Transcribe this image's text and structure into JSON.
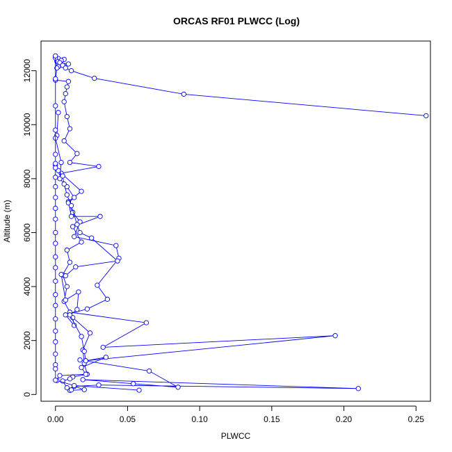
{
  "chart_data": {
    "type": "line",
    "title": "ORCAS RF01 PLWCC (Log)",
    "xlabel": "PLWCC",
    "ylabel": "Altitude (m)",
    "xlim": [
      -0.01,
      0.26
    ],
    "ylim": [
      -250,
      13100
    ],
    "x_ticks": [
      0.0,
      0.05,
      0.1,
      0.15,
      0.2,
      0.25
    ],
    "x_tick_labels": [
      "0.00",
      "0.05",
      "0.10",
      "0.15",
      "0.20",
      "0.25"
    ],
    "y_ticks": [
      0,
      2000,
      4000,
      6000,
      8000,
      10000,
      12000
    ],
    "y_tick_labels": [
      "0",
      "2000",
      "4000",
      "6000",
      "8000",
      "10000",
      "12000"
    ],
    "grid": false,
    "marker": "open-circle",
    "color": "#0000ff",
    "series": [
      {
        "points": [
          {
            "x": 0.0,
            "y": 12500
          },
          {
            "x": 0.002,
            "y": 12450
          },
          {
            "x": 0.006,
            "y": 12420
          },
          {
            "x": 0.004,
            "y": 12380
          },
          {
            "x": 0.001,
            "y": 12350
          },
          {
            "x": 0.003,
            "y": 12300
          },
          {
            "x": 0.009,
            "y": 12250
          },
          {
            "x": 0.005,
            "y": 12200
          },
          {
            "x": 0.002,
            "y": 12150
          },
          {
            "x": 0.007,
            "y": 12100
          },
          {
            "x": 0.011,
            "y": 12000
          },
          {
            "x": 0.027,
            "y": 11720
          },
          {
            "x": 0.089,
            "y": 11130
          },
          {
            "x": 0.257,
            "y": 10330
          }
        ]
      },
      {
        "points": [
          {
            "x": 0.0,
            "y": 12470
          },
          {
            "x": 0.001,
            "y": 12100
          },
          {
            "x": 0.0,
            "y": 11650
          },
          {
            "x": 0.009,
            "y": 11600
          },
          {
            "x": 0.008,
            "y": 11400
          },
          {
            "x": 0.007,
            "y": 11150
          },
          {
            "x": 0.006,
            "y": 10850
          },
          {
            "x": 0.008,
            "y": 10300
          },
          {
            "x": 0.01,
            "y": 9850
          },
          {
            "x": 0.006,
            "y": 9400
          },
          {
            "x": 0.015,
            "y": 8930
          },
          {
            "x": 0.01,
            "y": 8600
          },
          {
            "x": 0.03,
            "y": 8450
          },
          {
            "x": 0.004,
            "y": 8200
          },
          {
            "x": 0.018,
            "y": 7530
          },
          {
            "x": 0.009,
            "y": 7150
          },
          {
            "x": 0.011,
            "y": 6600
          },
          {
            "x": 0.031,
            "y": 6600
          },
          {
            "x": 0.012,
            "y": 6220
          },
          {
            "x": 0.018,
            "y": 5650
          },
          {
            "x": 0.008,
            "y": 5350
          },
          {
            "x": 0.01,
            "y": 4900
          },
          {
            "x": 0.005,
            "y": 4430
          },
          {
            "x": 0.008,
            "y": 4000
          },
          {
            "x": 0.006,
            "y": 3450
          },
          {
            "x": 0.01,
            "y": 3050
          },
          {
            "x": 0.063,
            "y": 2660
          },
          {
            "x": 0.033,
            "y": 1750
          },
          {
            "x": 0.194,
            "y": 2180
          },
          {
            "x": 0.021,
            "y": 1250
          },
          {
            "x": 0.017,
            "y": 1280
          },
          {
            "x": 0.065,
            "y": 870
          },
          {
            "x": 0.085,
            "y": 270
          },
          {
            "x": 0.054,
            "y": 400
          },
          {
            "x": 0.019,
            "y": 550
          },
          {
            "x": 0.21,
            "y": 220
          },
          {
            "x": 0.03,
            "y": 350
          },
          {
            "x": 0.013,
            "y": 300
          },
          {
            "x": 0.02,
            "y": 180
          },
          {
            "x": 0.01,
            "y": 150
          }
        ]
      },
      {
        "points": [
          {
            "x": 0.002,
            "y": 10450
          },
          {
            "x": 0.001,
            "y": 9600
          },
          {
            "x": 0.0,
            "y": 9500
          },
          {
            "x": 0.004,
            "y": 8600
          },
          {
            "x": 0.003,
            "y": 8000
          },
          {
            "x": 0.008,
            "y": 7700
          },
          {
            "x": 0.013,
            "y": 7300
          },
          {
            "x": 0.009,
            "y": 7100
          },
          {
            "x": 0.012,
            "y": 6750
          },
          {
            "x": 0.017,
            "y": 6400
          },
          {
            "x": 0.013,
            "y": 5850
          },
          {
            "x": 0.042,
            "y": 5520
          },
          {
            "x": 0.044,
            "y": 5050
          },
          {
            "x": 0.029,
            "y": 4050
          },
          {
            "x": 0.036,
            "y": 3530
          },
          {
            "x": 0.022,
            "y": 3170
          },
          {
            "x": 0.007,
            "y": 2950
          },
          {
            "x": 0.013,
            "y": 2560
          },
          {
            "x": 0.012,
            "y": 2850
          },
          {
            "x": 0.024,
            "y": 2280
          },
          {
            "x": 0.019,
            "y": 1650
          },
          {
            "x": 0.02,
            "y": 1150
          },
          {
            "x": 0.022,
            "y": 750
          },
          {
            "x": 0.012,
            "y": 650
          },
          {
            "x": 0.01,
            "y": 580
          },
          {
            "x": 0.005,
            "y": 500
          },
          {
            "x": 0.008,
            "y": 250
          },
          {
            "x": 0.011,
            "y": 170
          }
        ]
      },
      {
        "points": [
          {
            "x": 0.0,
            "y": 8500
          },
          {
            "x": 0.002,
            "y": 8300
          },
          {
            "x": 0.005,
            "y": 8100
          },
          {
            "x": 0.006,
            "y": 7800
          },
          {
            "x": 0.008,
            "y": 7400
          },
          {
            "x": 0.011,
            "y": 7000
          },
          {
            "x": 0.015,
            "y": 6300
          },
          {
            "x": 0.017,
            "y": 6000
          },
          {
            "x": 0.025,
            "y": 5800
          },
          {
            "x": 0.043,
            "y": 4950
          },
          {
            "x": 0.014,
            "y": 4730
          },
          {
            "x": 0.007,
            "y": 4400
          },
          {
            "x": 0.004,
            "y": 4450
          },
          {
            "x": 0.007,
            "y": 3500
          },
          {
            "x": 0.016,
            "y": 3800
          },
          {
            "x": 0.015,
            "y": 3150
          },
          {
            "x": 0.01,
            "y": 2950
          },
          {
            "x": 0.018,
            "y": 2150
          },
          {
            "x": 0.02,
            "y": 1600
          },
          {
            "x": 0.021,
            "y": 1250
          },
          {
            "x": 0.035,
            "y": 1380
          },
          {
            "x": 0.018,
            "y": 1000
          },
          {
            "x": 0.021,
            "y": 750
          },
          {
            "x": 0.003,
            "y": 700
          },
          {
            "x": 0.001,
            "y": 520
          },
          {
            "x": 0.013,
            "y": 330
          },
          {
            "x": 0.058,
            "y": 160
          }
        ]
      },
      {
        "points": [
          {
            "x": 0.0,
            "y": 12550
          },
          {
            "x": 0.0,
            "y": 11700
          },
          {
            "x": 0.0,
            "y": 10700
          },
          {
            "x": 0.0,
            "y": 9800
          },
          {
            "x": 0.0,
            "y": 8900
          },
          {
            "x": 0.0,
            "y": 8560
          },
          {
            "x": 0.0,
            "y": 8400
          },
          {
            "x": 0.0,
            "y": 8050
          },
          {
            "x": 0.0,
            "y": 7700
          },
          {
            "x": 0.0,
            "y": 7300
          },
          {
            "x": 0.0,
            "y": 6900
          },
          {
            "x": 0.0,
            "y": 6500
          },
          {
            "x": 0.0,
            "y": 6000
          },
          {
            "x": 0.0,
            "y": 5600
          },
          {
            "x": 0.0,
            "y": 5100
          },
          {
            "x": 0.0,
            "y": 4700
          },
          {
            "x": 0.0,
            "y": 4200
          },
          {
            "x": 0.0,
            "y": 3700
          },
          {
            "x": 0.0,
            "y": 3300
          },
          {
            "x": 0.0,
            "y": 2800
          },
          {
            "x": 0.0,
            "y": 2350
          },
          {
            "x": 0.0,
            "y": 1950
          },
          {
            "x": 0.0,
            "y": 1500
          },
          {
            "x": 0.0,
            "y": 1100
          },
          {
            "x": 0.0,
            "y": 950
          },
          {
            "x": 0.0,
            "y": 530
          }
        ]
      }
    ]
  }
}
